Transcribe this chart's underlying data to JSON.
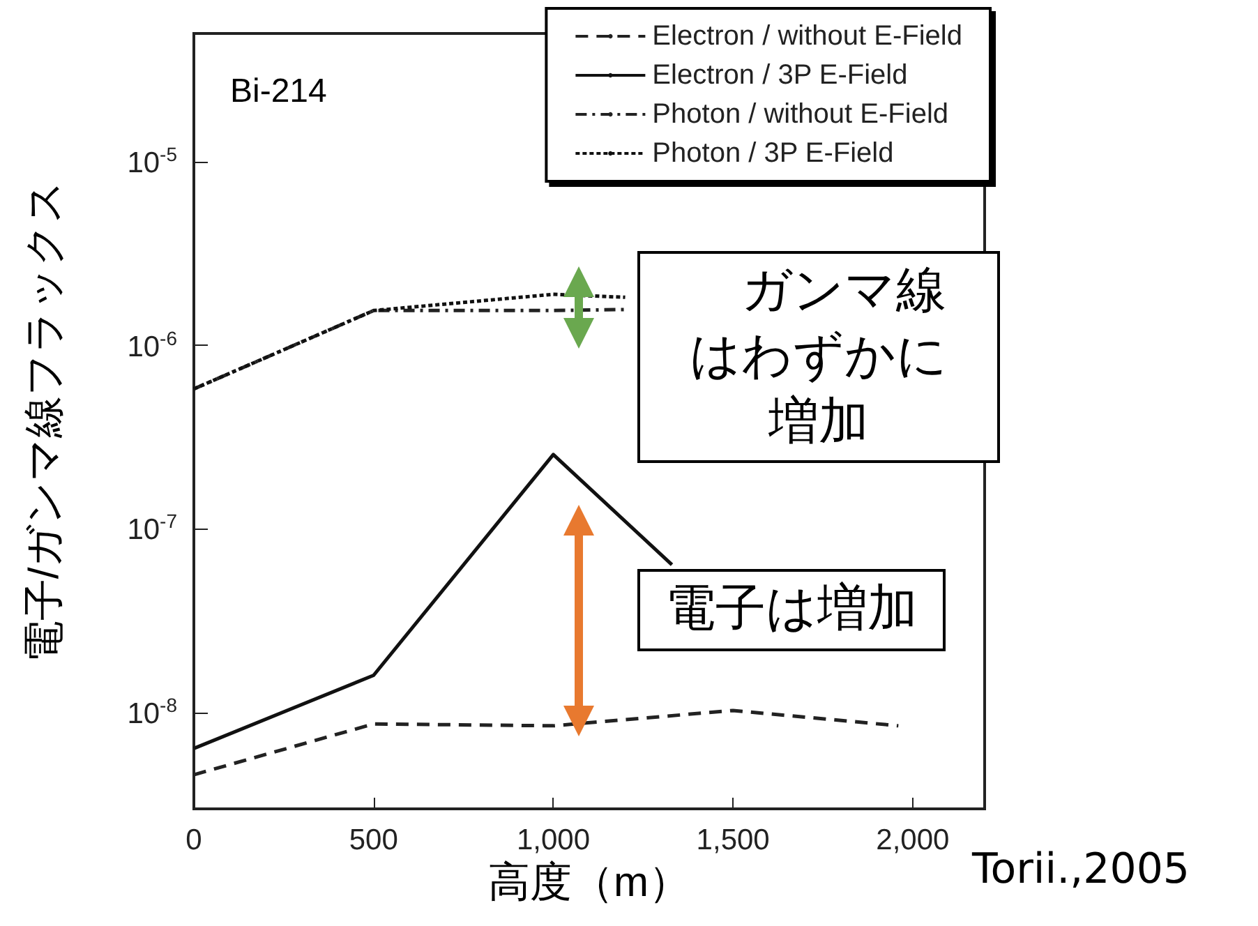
{
  "chart_data": {
    "type": "line",
    "xlabel": "高度（m）",
    "ylabel": "電子/ガンマ線フラックス",
    "annotations": [
      "Bi-214",
      "ガンマ線はわずかに増加",
      "電子は増加",
      "Torii.,2005"
    ],
    "log": "y",
    "grid": false,
    "legend": "top right",
    "marker": "none",
    "xlim": [
      0,
      2200
    ],
    "xticks": [
      0,
      500,
      {
        "value": 1000,
        "label": "1,000"
      },
      {
        "value": 1500,
        "label": "1,500"
      },
      {
        "value": 2000,
        "label": "2,000"
      }
    ],
    "ylim": [
      3e-09,
      5e-05
    ],
    "yticks": [
      {
        "value": 1e-08,
        "label": "10$^{-8}$"
      },
      {
        "value": 1e-07,
        "label": "10$^{-7}$"
      },
      {
        "value": 1e-06,
        "label": "10$^{-6}$"
      },
      {
        "value": 1e-05,
        "label": "10$^{-5}$"
      }
    ],
    "series": [
      {
        "name": "Electron / without E-Field",
        "color": "#222222",
        "line_style": "dashed",
        "x": [
          0,
          500,
          1000,
          1500,
          1960
        ],
        "values": [
          4.6e-09,
          8.7e-09,
          8.5e-09,
          1.03e-08,
          8.5e-09
        ]
      },
      {
        "name": "Electron / 3P E-Field",
        "color": "#111111",
        "line_style": "solid",
        "x": [
          0,
          500,
          1000,
          1330
        ],
        "values": [
          6.4e-09,
          1.6e-08,
          2.55e-07,
          6.4e-08
        ]
      },
      {
        "name": "Photon / without E-Field",
        "color": "#222222",
        "line_style": "dashdot",
        "x": [
          0,
          500,
          1000,
          1200
        ],
        "values": [
          5.8e-07,
          1.55e-06,
          1.55e-06,
          1.57e-06
        ]
      },
      {
        "name": "Photon / 3P E-Field",
        "color": "#111111",
        "line_style": "dotted",
        "x": [
          0,
          500,
          1000,
          1200
        ],
        "values": [
          5.8e-07,
          1.55e-06,
          1.9e-06,
          1.83e-06
        ]
      }
    ]
  }
}
